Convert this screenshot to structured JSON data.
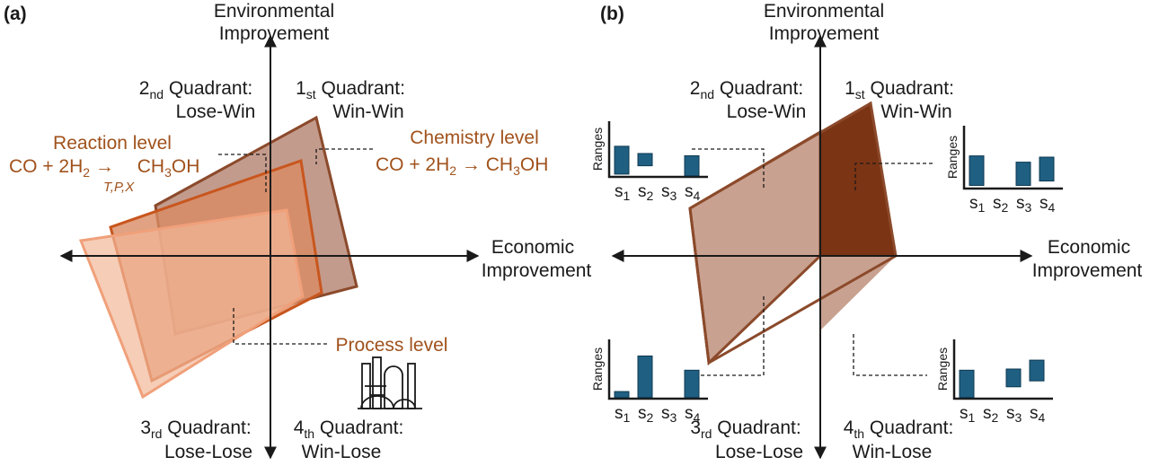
{
  "panels": {
    "a": {
      "tag": "(a)",
      "axis_y": [
        "Environmental",
        "Improvement"
      ],
      "axis_x": [
        "Economic",
        "Improvement"
      ],
      "q1": {
        "pre": "1",
        "sub": "st",
        "post": " Quadrant:",
        "name": "Win-Win"
      },
      "q2": {
        "pre": "2",
        "sub": "nd",
        "post": " Quadrant:",
        "name": "Lose-Win"
      },
      "q3": {
        "pre": "3",
        "sub": "rd",
        "post": " Quadrant:",
        "name": "Lose-Lose"
      },
      "q4": {
        "pre": "4",
        "sub": "th",
        "post": " Quadrant:",
        "name": "Win-Lose"
      },
      "reaction_level": "Reaction level",
      "reaction_eq": {
        "lhs": "CO + 2H",
        "sub2": "2",
        "arrow": " → ",
        "cond": "T,P,X",
        "rhs": "CH",
        "sub3": "3",
        "rhs2": "OH"
      },
      "chemistry_level": "Chemistry level",
      "chemistry_eq": {
        "lhs": "CO + 2H",
        "sub2": "2",
        "arrow": " → CH",
        "sub3": "3",
        "rhs2": "OH"
      },
      "process_level": "Process level",
      "plant_icon": "industrial-plant-icon"
    },
    "b": {
      "tag": "(b)",
      "axis_y": [
        "Environmental",
        "Improvement"
      ],
      "axis_x": [
        "Economic",
        "Improvement"
      ],
      "q1": {
        "pre": "1",
        "sub": "st",
        "post": " Quadrant:",
        "name": "Win-Win"
      },
      "q2": {
        "pre": "2",
        "sub": "nd",
        "post": " Quadrant:",
        "name": "Lose-Win"
      },
      "q3": {
        "pre": "3",
        "sub": "rd",
        "post": " Quadrant:",
        "name": "Lose-Lose"
      },
      "q4": {
        "pre": "4",
        "sub": "th",
        "post": " Quadrant:",
        "name": "Win-Lose"
      },
      "mini_ylabel": "Ranges",
      "scenarios": [
        "s1",
        "s2",
        "s3",
        "s4"
      ]
    }
  },
  "colors": {
    "chemistry_fill": "#b98a78",
    "chemistry_stroke": "#8b4a2b",
    "reaction_fill": "#d98b64",
    "reaction_stroke": "#c8561e",
    "process_fill": "#f2b898",
    "process_stroke": "#f0a07a",
    "panel_b_fill": "#c9a190",
    "panel_b_q1": "#7b3414",
    "bar": "#1f5f82",
    "label_brown": "#a0521c"
  }
}
